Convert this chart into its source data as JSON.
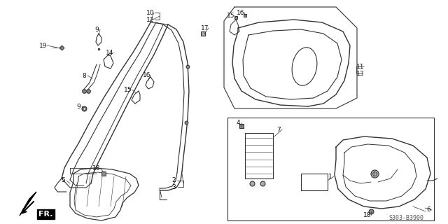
{
  "part_number": "S303-B3900",
  "background_color": "#ffffff",
  "line_color": "#333333",
  "text_color": "#111111",
  "fig_width": 6.4,
  "fig_height": 3.2,
  "dpi": 100,
  "annotation_fontsize": 6.5,
  "part_number_fontsize": 6.0
}
